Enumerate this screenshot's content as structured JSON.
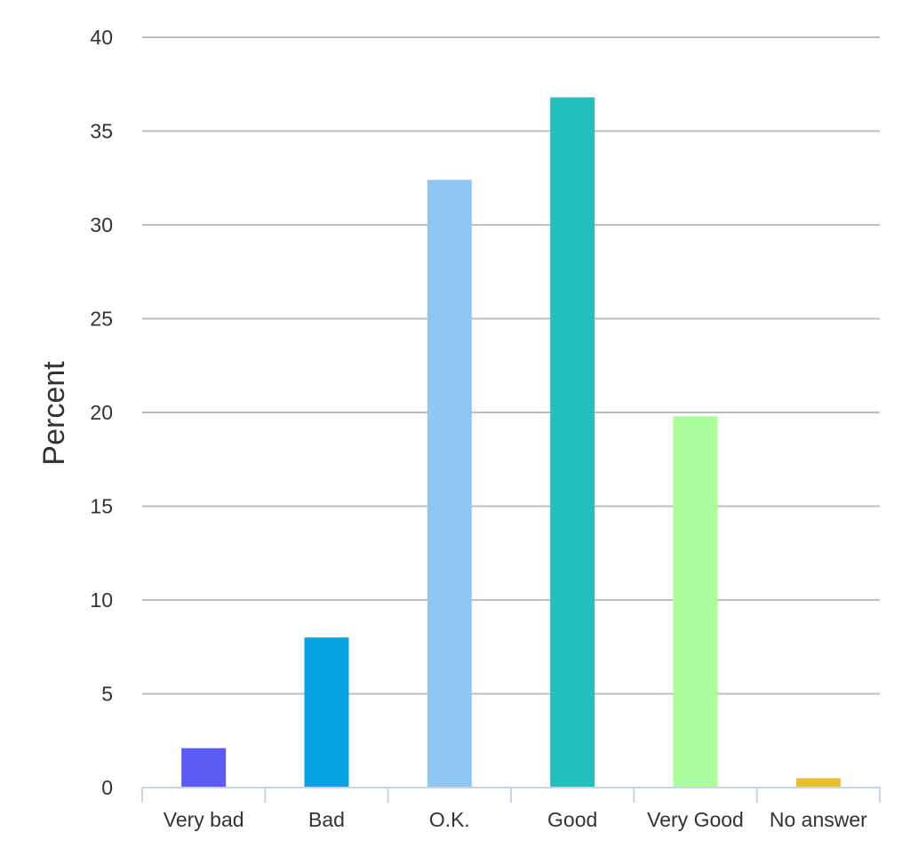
{
  "chart_data": {
    "type": "bar",
    "title": "",
    "xlabel": "",
    "ylabel": "Percent",
    "ylim": [
      0,
      40
    ],
    "yticks": [
      0,
      5,
      10,
      15,
      20,
      25,
      30,
      35,
      40
    ],
    "grid": true,
    "legend": "none",
    "categories": [
      "Very bad",
      "Bad",
      "O.K.",
      "Good",
      "Very Good",
      "No answer"
    ],
    "values": [
      2.1,
      8.0,
      32.4,
      36.8,
      19.8,
      0.5
    ],
    "colors": [
      "#5a5af5",
      "#06a2e2",
      "#90c6f2",
      "#23bfbe",
      "#abfc9b",
      "#e8be30"
    ]
  }
}
